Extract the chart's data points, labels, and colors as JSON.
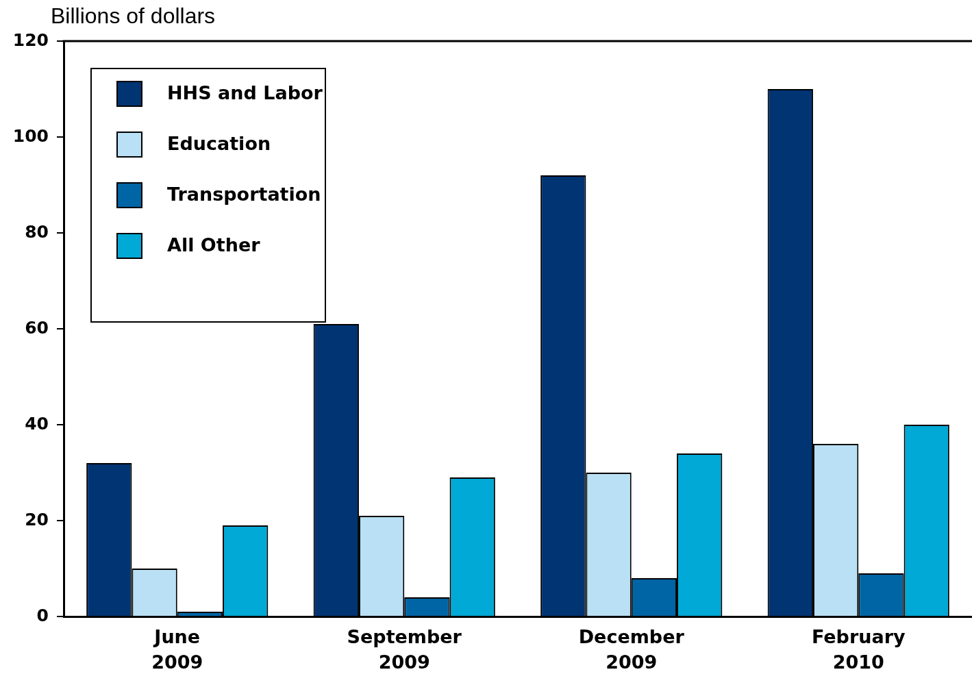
{
  "chart_data": {
    "type": "bar",
    "ylabel": "Billions of dollars",
    "categories": [
      "June 2009",
      "September 2009",
      "December 2009",
      "February 2010"
    ],
    "series": [
      {
        "name": "HHS and Labor",
        "color": "#003473",
        "values": [
          32,
          61,
          92,
          110
        ]
      },
      {
        "name": "Education",
        "color": "#b9e0f5",
        "values": [
          10,
          21,
          30,
          36
        ]
      },
      {
        "name": "Transportation",
        "color": "#0065a4",
        "values": [
          1,
          4,
          8,
          9
        ]
      },
      {
        "name": "All Other",
        "color": "#00a9d6",
        "values": [
          19,
          29,
          34,
          40
        ]
      }
    ],
    "ylim": [
      0,
      120
    ],
    "yticks": [
      0,
      20,
      40,
      60,
      80,
      100,
      120
    ],
    "grid": false,
    "legend": "top left"
  }
}
